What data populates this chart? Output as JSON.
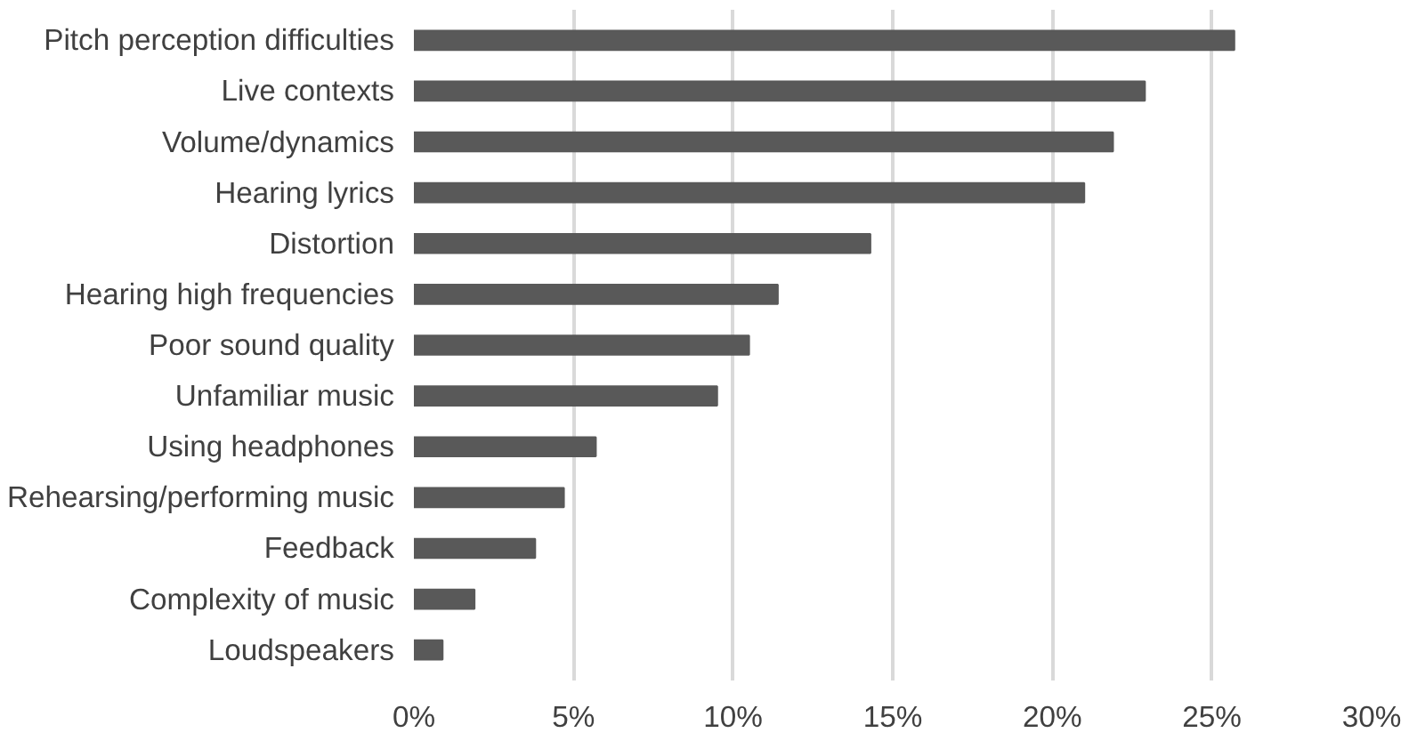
{
  "chart_data": {
    "type": "bar",
    "orientation": "horizontal",
    "categories": [
      "Pitch perception difficulties",
      "Live contexts",
      "Volume/dynamics",
      "Hearing lyrics",
      "Distortion",
      "Hearing high frequencies",
      "Poor sound quality",
      "Unfamiliar music",
      "Using headphones",
      "Rehearsing/performing music",
      "Feedback",
      "Complexity of music",
      "Loudspeakers"
    ],
    "values": [
      25.7,
      22.9,
      21.9,
      21.0,
      14.3,
      11.4,
      10.5,
      9.5,
      5.7,
      4.7,
      3.8,
      1.9,
      0.9
    ],
    "color": "#595959",
    "xlim": [
      0,
      30
    ],
    "xticks": [
      {
        "value": 0,
        "label": "0%"
      },
      {
        "value": 5,
        "label": "5%"
      },
      {
        "value": 10,
        "label": "10%"
      },
      {
        "value": 15,
        "label": "15%"
      },
      {
        "value": 20,
        "label": "20%"
      },
      {
        "value": 25,
        "label": "25%"
      },
      {
        "value": 30,
        "label": "30%"
      }
    ],
    "grid": "x"
  }
}
